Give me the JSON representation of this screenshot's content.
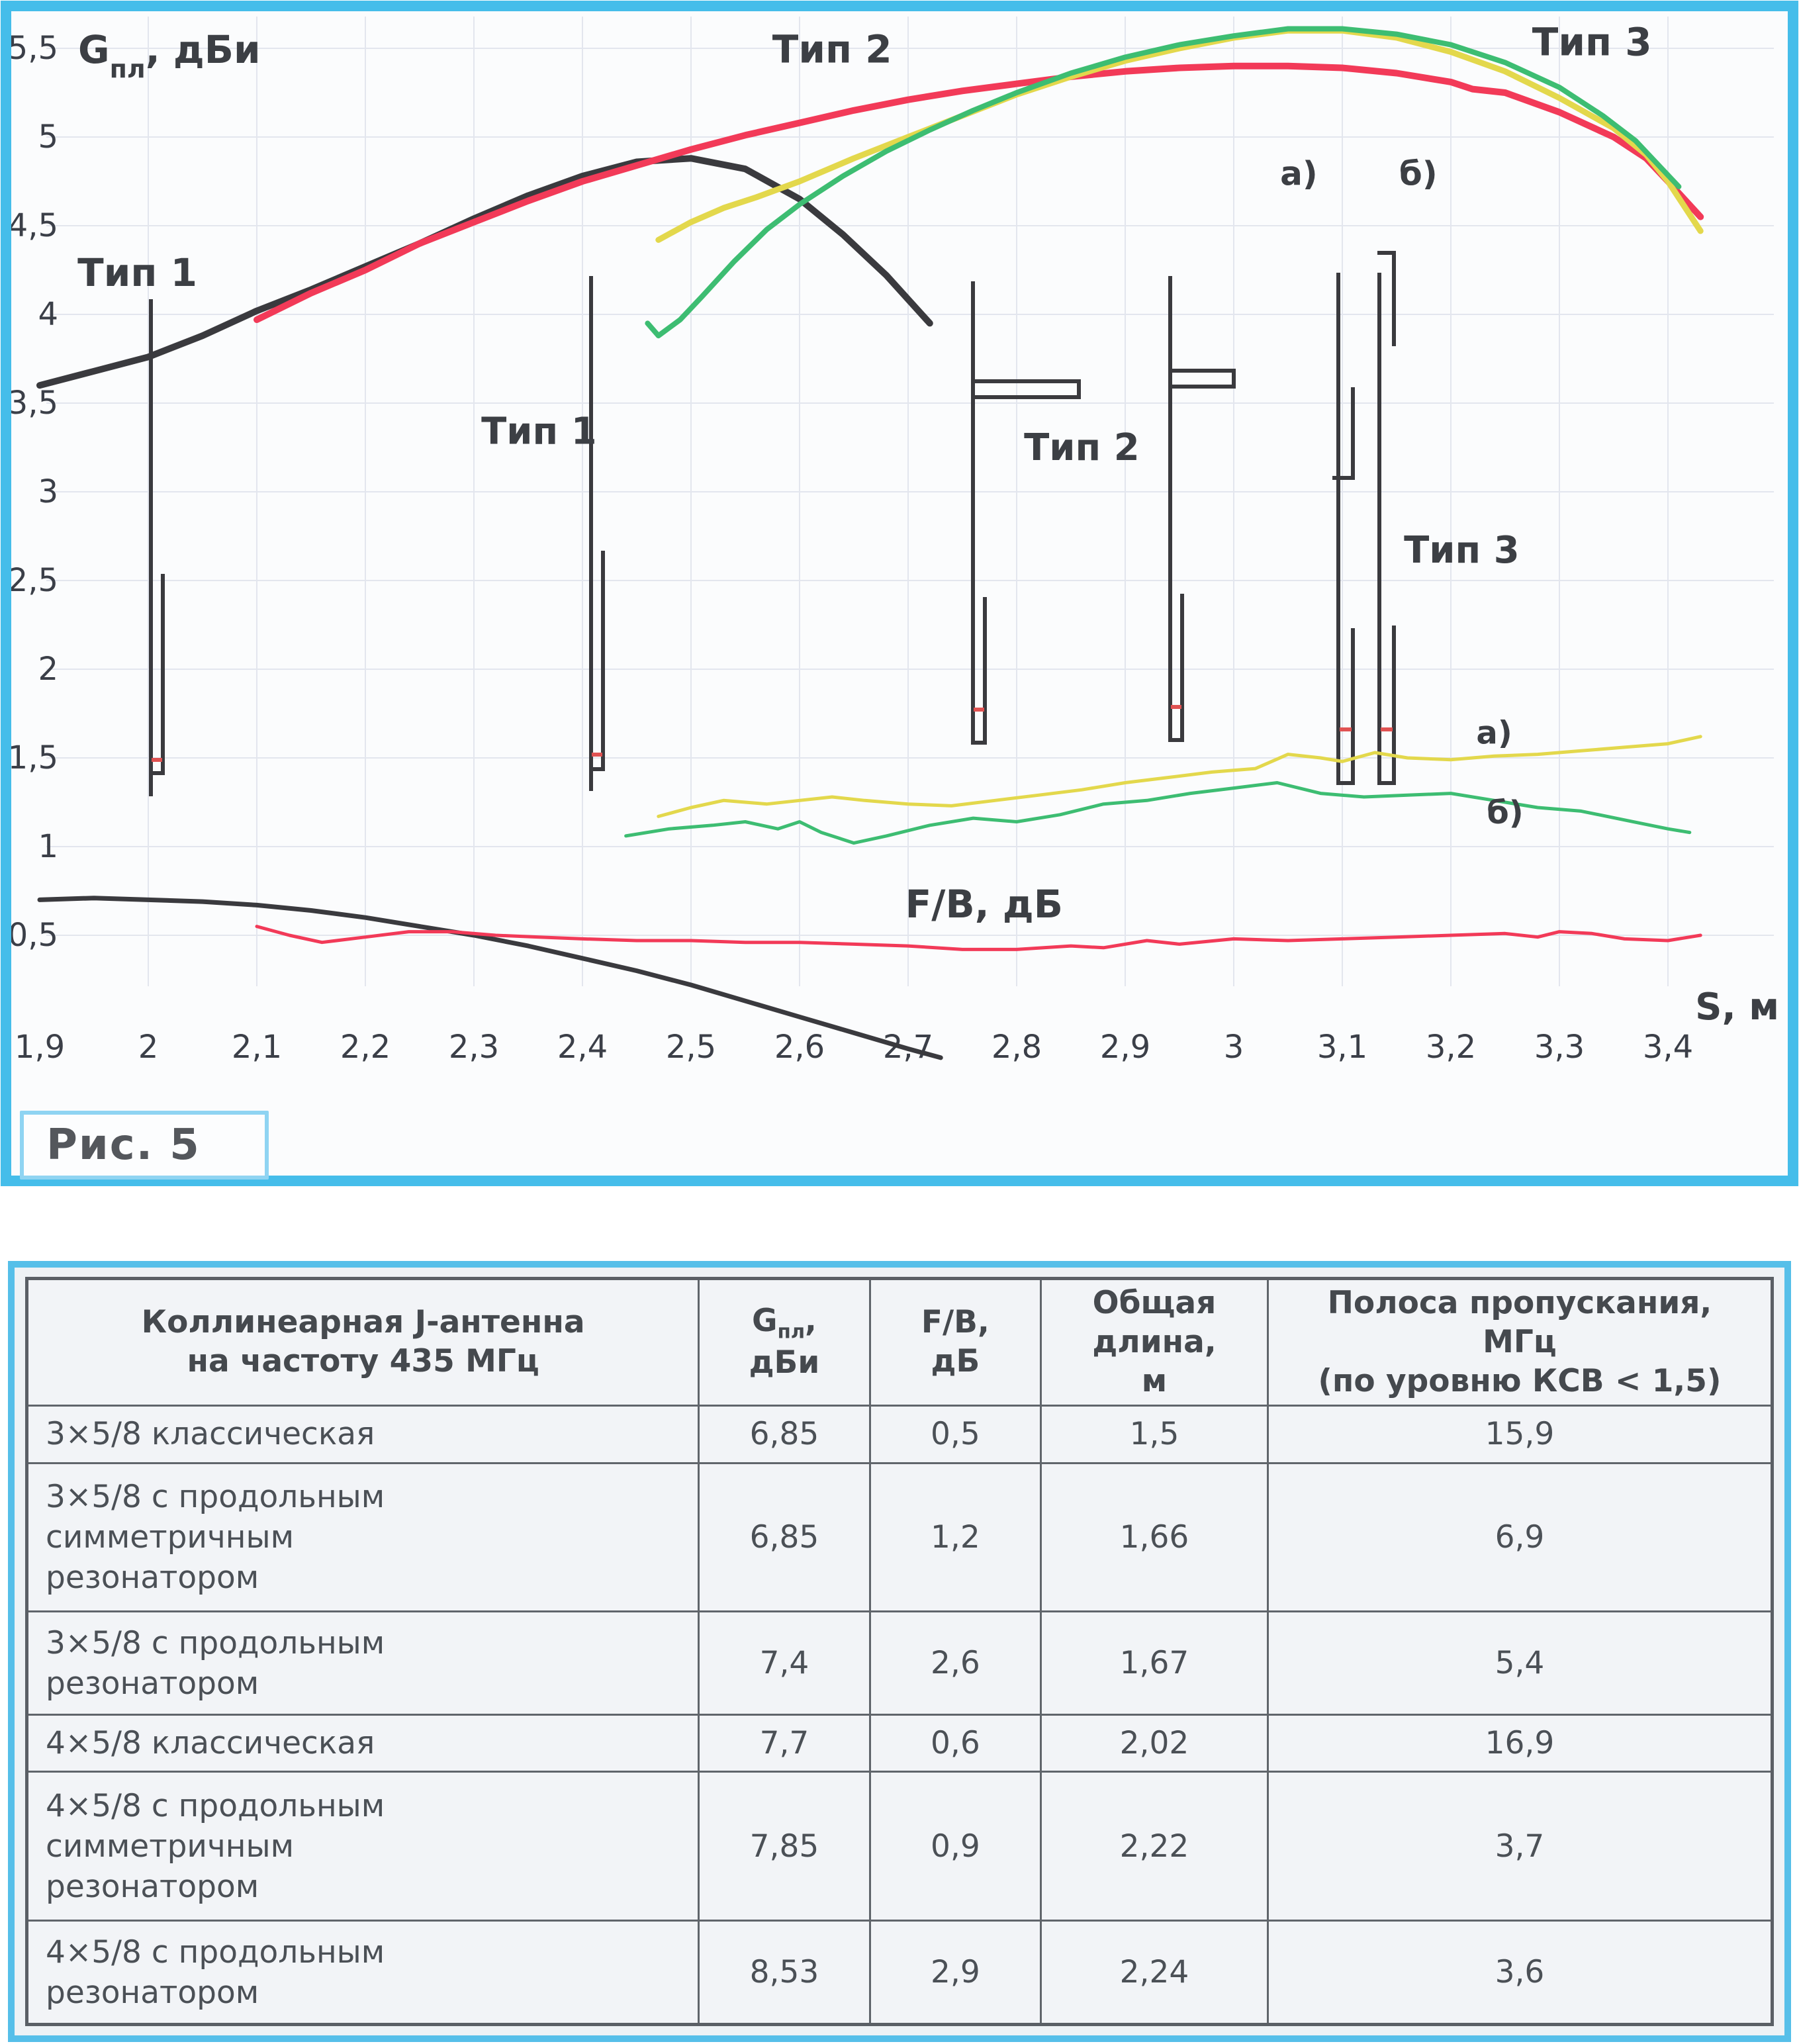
{
  "figure": {
    "caption": "Рис. 5"
  },
  "colors": {
    "frame": "#45bdea",
    "grid": "#e3e6ee",
    "ink": "#3c3f45",
    "type1": "#3a3a3e",
    "type2": "#f23a58",
    "type3a": "#e3d84c",
    "type3b": "#3dbd72",
    "feed_mark": "#e05252"
  },
  "chart_data": {
    "type": "line",
    "title": "",
    "ylabel": "Gпл, дБи",
    "ylabel_sub": {
      "base": "G",
      "sub": "пл",
      "tail": ", дБи"
    },
    "fb_label": "F/B, дБ",
    "xlabel": "S, м",
    "grid": true,
    "xlim": [
      1.9,
      3.47
    ],
    "ylim": [
      -0.25,
      5.65
    ],
    "x_ticks": [
      {
        "v": 1.9,
        "label": "1,9"
      },
      {
        "v": 2.0,
        "label": "2"
      },
      {
        "v": 2.1,
        "label": "2,1"
      },
      {
        "v": 2.2,
        "label": "2,2"
      },
      {
        "v": 2.3,
        "label": "2,3"
      },
      {
        "v": 2.4,
        "label": "2,4"
      },
      {
        "v": 2.5,
        "label": "2,5"
      },
      {
        "v": 2.6,
        "label": "2,6"
      },
      {
        "v": 2.7,
        "label": "2,7"
      },
      {
        "v": 2.8,
        "label": "2,8"
      },
      {
        "v": 2.9,
        "label": "2,9"
      },
      {
        "v": 3.0,
        "label": "3"
      },
      {
        "v": 3.1,
        "label": "3,1"
      },
      {
        "v": 3.2,
        "label": "3,2"
      },
      {
        "v": 3.3,
        "label": "3,3"
      },
      {
        "v": 3.4,
        "label": "3,4"
      }
    ],
    "y_ticks": [
      {
        "v": 5.5,
        "label": "5,5"
      },
      {
        "v": 5.0,
        "label": "5"
      },
      {
        "v": 4.5,
        "label": "4,5"
      },
      {
        "v": 4.0,
        "label": "4"
      },
      {
        "v": 3.5,
        "label": "3,5"
      },
      {
        "v": 3.0,
        "label": "3"
      },
      {
        "v": 2.5,
        "label": "2,5"
      },
      {
        "v": 2.0,
        "label": "2"
      },
      {
        "v": 1.5,
        "label": "1,5"
      },
      {
        "v": 1.0,
        "label": "1"
      },
      {
        "v": 0.5,
        "label": "0,5"
      }
    ],
    "series": [
      {
        "id": "tip1-gain",
        "name": "Тип 1 — Gпл",
        "color": "type1",
        "width": 10,
        "points": [
          [
            1.9,
            3.6
          ],
          [
            1.95,
            3.68
          ],
          [
            2.0,
            3.76
          ],
          [
            2.05,
            3.88
          ],
          [
            2.1,
            4.02
          ],
          [
            2.15,
            4.14
          ],
          [
            2.2,
            4.27
          ],
          [
            2.25,
            4.4
          ],
          [
            2.3,
            4.54
          ],
          [
            2.35,
            4.67
          ],
          [
            2.4,
            4.78
          ],
          [
            2.45,
            4.86
          ],
          [
            2.5,
            4.88
          ],
          [
            2.55,
            4.82
          ],
          [
            2.6,
            4.65
          ],
          [
            2.64,
            4.45
          ],
          [
            2.68,
            4.22
          ],
          [
            2.72,
            3.95
          ]
        ]
      },
      {
        "id": "tip2-gain",
        "name": "Тип 2 — Gпл",
        "color": "type2",
        "width": 10,
        "points": [
          [
            2.1,
            3.97
          ],
          [
            2.15,
            4.12
          ],
          [
            2.2,
            4.25
          ],
          [
            2.25,
            4.4
          ],
          [
            2.3,
            4.52
          ],
          [
            2.35,
            4.64
          ],
          [
            2.4,
            4.75
          ],
          [
            2.45,
            4.84
          ],
          [
            2.5,
            4.93
          ],
          [
            2.55,
            5.01
          ],
          [
            2.6,
            5.08
          ],
          [
            2.65,
            5.15
          ],
          [
            2.7,
            5.21
          ],
          [
            2.75,
            5.26
          ],
          [
            2.8,
            5.3
          ],
          [
            2.85,
            5.34
          ],
          [
            2.9,
            5.37
          ],
          [
            2.95,
            5.39
          ],
          [
            3.0,
            5.4
          ],
          [
            3.05,
            5.4
          ],
          [
            3.1,
            5.39
          ],
          [
            3.15,
            5.36
          ],
          [
            3.2,
            5.31
          ],
          [
            3.22,
            5.27
          ],
          [
            3.25,
            5.25
          ],
          [
            3.3,
            5.14
          ],
          [
            3.35,
            5.0
          ],
          [
            3.38,
            4.88
          ],
          [
            3.4,
            4.75
          ],
          [
            3.43,
            4.55
          ]
        ]
      },
      {
        "id": "tip3a-gain",
        "name": "Тип 3 а) — Gпл",
        "color": "type3a",
        "width": 9,
        "points": [
          [
            2.47,
            4.42
          ],
          [
            2.5,
            4.52
          ],
          [
            2.53,
            4.6
          ],
          [
            2.56,
            4.66
          ],
          [
            2.6,
            4.75
          ],
          [
            2.65,
            4.88
          ],
          [
            2.7,
            5.0
          ],
          [
            2.75,
            5.12
          ],
          [
            2.8,
            5.24
          ],
          [
            2.85,
            5.34
          ],
          [
            2.9,
            5.43
          ],
          [
            2.95,
            5.5
          ],
          [
            3.0,
            5.56
          ],
          [
            3.05,
            5.6
          ],
          [
            3.1,
            5.6
          ],
          [
            3.15,
            5.56
          ],
          [
            3.2,
            5.48
          ],
          [
            3.25,
            5.37
          ],
          [
            3.3,
            5.22
          ],
          [
            3.35,
            5.05
          ],
          [
            3.38,
            4.9
          ],
          [
            3.4,
            4.75
          ],
          [
            3.43,
            4.47
          ]
        ]
      },
      {
        "id": "tip3b-gain",
        "name": "Тип 3 б) — Gпл",
        "color": "type3b",
        "width": 8,
        "points": [
          [
            2.46,
            3.95
          ],
          [
            2.47,
            3.88
          ],
          [
            2.49,
            3.97
          ],
          [
            2.51,
            4.1
          ],
          [
            2.54,
            4.3
          ],
          [
            2.57,
            4.48
          ],
          [
            2.6,
            4.62
          ],
          [
            2.64,
            4.78
          ],
          [
            2.68,
            4.92
          ],
          [
            2.72,
            5.04
          ],
          [
            2.76,
            5.15
          ],
          [
            2.8,
            5.25
          ],
          [
            2.85,
            5.36
          ],
          [
            2.9,
            5.45
          ],
          [
            2.95,
            5.52
          ],
          [
            3.0,
            5.57
          ],
          [
            3.05,
            5.61
          ],
          [
            3.1,
            5.61
          ],
          [
            3.15,
            5.58
          ],
          [
            3.2,
            5.52
          ],
          [
            3.25,
            5.42
          ],
          [
            3.3,
            5.28
          ],
          [
            3.34,
            5.12
          ],
          [
            3.37,
            4.98
          ],
          [
            3.41,
            4.72
          ]
        ]
      },
      {
        "id": "tip1-fb",
        "name": "Тип 1 — F/B",
        "color": "type1",
        "width": 7,
        "points": [
          [
            1.9,
            0.7
          ],
          [
            1.95,
            0.71
          ],
          [
            2.0,
            0.7
          ],
          [
            2.05,
            0.69
          ],
          [
            2.1,
            0.67
          ],
          [
            2.15,
            0.64
          ],
          [
            2.2,
            0.6
          ],
          [
            2.25,
            0.55
          ],
          [
            2.3,
            0.5
          ],
          [
            2.35,
            0.44
          ],
          [
            2.4,
            0.37
          ],
          [
            2.45,
            0.3
          ],
          [
            2.5,
            0.22
          ],
          [
            2.55,
            0.13
          ],
          [
            2.6,
            0.04
          ],
          [
            2.65,
            -0.05
          ],
          [
            2.7,
            -0.14
          ],
          [
            2.73,
            -0.19
          ]
        ]
      },
      {
        "id": "tip2-fb",
        "name": "Тип 2 — F/B",
        "color": "type2",
        "width": 5,
        "points": [
          [
            2.1,
            0.55
          ],
          [
            2.13,
            0.5
          ],
          [
            2.16,
            0.46
          ],
          [
            2.2,
            0.49
          ],
          [
            2.24,
            0.52
          ],
          [
            2.28,
            0.52
          ],
          [
            2.32,
            0.5
          ],
          [
            2.36,
            0.49
          ],
          [
            2.4,
            0.48
          ],
          [
            2.45,
            0.47
          ],
          [
            2.5,
            0.47
          ],
          [
            2.55,
            0.46
          ],
          [
            2.6,
            0.46
          ],
          [
            2.65,
            0.45
          ],
          [
            2.7,
            0.44
          ],
          [
            2.75,
            0.42
          ],
          [
            2.8,
            0.42
          ],
          [
            2.85,
            0.44
          ],
          [
            2.88,
            0.43
          ],
          [
            2.92,
            0.47
          ],
          [
            2.95,
            0.45
          ],
          [
            3.0,
            0.48
          ],
          [
            3.05,
            0.47
          ],
          [
            3.1,
            0.48
          ],
          [
            3.15,
            0.49
          ],
          [
            3.2,
            0.5
          ],
          [
            3.25,
            0.51
          ],
          [
            3.28,
            0.49
          ],
          [
            3.3,
            0.52
          ],
          [
            3.33,
            0.51
          ],
          [
            3.36,
            0.48
          ],
          [
            3.4,
            0.47
          ],
          [
            3.43,
            0.5
          ]
        ]
      },
      {
        "id": "tip3a-fb",
        "name": "Тип 3 а) — F/B",
        "color": "type3a",
        "width": 5,
        "points": [
          [
            2.47,
            1.17
          ],
          [
            2.5,
            1.22
          ],
          [
            2.53,
            1.26
          ],
          [
            2.57,
            1.24
          ],
          [
            2.6,
            1.26
          ],
          [
            2.63,
            1.28
          ],
          [
            2.66,
            1.26
          ],
          [
            2.7,
            1.24
          ],
          [
            2.74,
            1.23
          ],
          [
            2.78,
            1.26
          ],
          [
            2.82,
            1.29
          ],
          [
            2.86,
            1.32
          ],
          [
            2.9,
            1.36
          ],
          [
            2.94,
            1.39
          ],
          [
            2.98,
            1.42
          ],
          [
            3.02,
            1.44
          ],
          [
            3.05,
            1.52
          ],
          [
            3.08,
            1.5
          ],
          [
            3.1,
            1.48
          ],
          [
            3.13,
            1.53
          ],
          [
            3.16,
            1.5
          ],
          [
            3.2,
            1.49
          ],
          [
            3.24,
            1.51
          ],
          [
            3.28,
            1.52
          ],
          [
            3.32,
            1.54
          ],
          [
            3.36,
            1.56
          ],
          [
            3.4,
            1.58
          ],
          [
            3.43,
            1.62
          ]
        ]
      },
      {
        "id": "tip3b-fb",
        "name": "Тип 3 б) — F/B",
        "color": "type3b",
        "width": 5,
        "points": [
          [
            2.44,
            1.06
          ],
          [
            2.48,
            1.1
          ],
          [
            2.52,
            1.12
          ],
          [
            2.55,
            1.14
          ],
          [
            2.58,
            1.1
          ],
          [
            2.6,
            1.14
          ],
          [
            2.62,
            1.08
          ],
          [
            2.65,
            1.02
          ],
          [
            2.68,
            1.06
          ],
          [
            2.72,
            1.12
          ],
          [
            2.76,
            1.16
          ],
          [
            2.8,
            1.14
          ],
          [
            2.84,
            1.18
          ],
          [
            2.88,
            1.24
          ],
          [
            2.92,
            1.26
          ],
          [
            2.96,
            1.3
          ],
          [
            3.0,
            1.33
          ],
          [
            3.04,
            1.36
          ],
          [
            3.08,
            1.3
          ],
          [
            3.12,
            1.28
          ],
          [
            3.16,
            1.29
          ],
          [
            3.2,
            1.3
          ],
          [
            3.24,
            1.26
          ],
          [
            3.28,
            1.22
          ],
          [
            3.32,
            1.2
          ],
          [
            3.36,
            1.15
          ],
          [
            3.4,
            1.1
          ],
          [
            3.42,
            1.08
          ]
        ]
      }
    ],
    "annotations": [
      {
        "id": "tip1-curve-label",
        "text": "Тип 1",
        "s": 1.99,
        "v": 4.16,
        "size": 58
      },
      {
        "id": "tip2-curve-label",
        "text": "Тип 2",
        "s": 2.63,
        "v": 5.42,
        "size": 58
      },
      {
        "id": "tip3-curve-label",
        "text": "Тип 3",
        "s": 3.33,
        "v": 5.46,
        "size": 58
      },
      {
        "id": "tip1-diagram-label",
        "text": "Тип 1",
        "s": 2.36,
        "v": 3.27,
        "size": 56
      },
      {
        "id": "tip2-diagram-label",
        "text": "Тип 2",
        "s": 2.86,
        "v": 3.18,
        "size": 56
      },
      {
        "id": "tip3-diagram-label",
        "text": "Тип 3",
        "s": 3.21,
        "v": 2.6,
        "size": 56
      },
      {
        "id": "a-diagram-label",
        "text": "а)",
        "s": 3.06,
        "v": 4.73,
        "size": 50
      },
      {
        "id": "b-diagram-label",
        "text": "б)",
        "s": 3.17,
        "v": 4.73,
        "size": 50
      },
      {
        "id": "a-fb-curve-label",
        "text": "а)",
        "s": 3.24,
        "v": 1.58,
        "size": 48
      },
      {
        "id": "b-fb-curve-label",
        "text": "б)",
        "s": 3.25,
        "v": 1.13,
        "size": 48
      },
      {
        "id": "fb-axis-label",
        "text": "F/B, дБ",
        "s": 2.77,
        "v": 0.6,
        "size": 58
      }
    ]
  },
  "table": {
    "headers": {
      "name": "Коллинеарная J-антенна\nна частоту 435 МГц",
      "gain": {
        "base": "G",
        "sub": "пл",
        "tail": ",",
        "line2": "дБи"
      },
      "fb": "F/B,\nдБ",
      "length": "Общая\nдлина,\nм",
      "band": "Полоса пропускания,\nМГц\n(по уровню КСВ < 1,5)"
    },
    "rows": [
      {
        "name": "3×5/8 классическая",
        "gain": "6,85",
        "fb": "0,5",
        "length": "1,5",
        "band": "15,9"
      },
      {
        "name": "3×5/8 с продольным\nсимметричным\nрезонатором",
        "gain": "6,85",
        "fb": "1,2",
        "length": "1,66",
        "band": "6,9"
      },
      {
        "name": "3×5/8 с продольным\nрезонатором",
        "gain": "7,4",
        "fb": "2,6",
        "length": "1,67",
        "band": "5,4"
      },
      {
        "name": "4×5/8 классическая",
        "gain": "7,7",
        "fb": "0,6",
        "length": "2,02",
        "band": "16,9"
      },
      {
        "name": "4×5/8 с продольным\nсимметричным\nрезонатором",
        "gain": "7,85",
        "fb": "0,9",
        "length": "2,22",
        "band": "3,7"
      },
      {
        "name": "4×5/8 с продольным\nрезонатором",
        "gain": "8,53",
        "fb": "2,9",
        "length": "2,24",
        "band": "3,6"
      }
    ]
  }
}
